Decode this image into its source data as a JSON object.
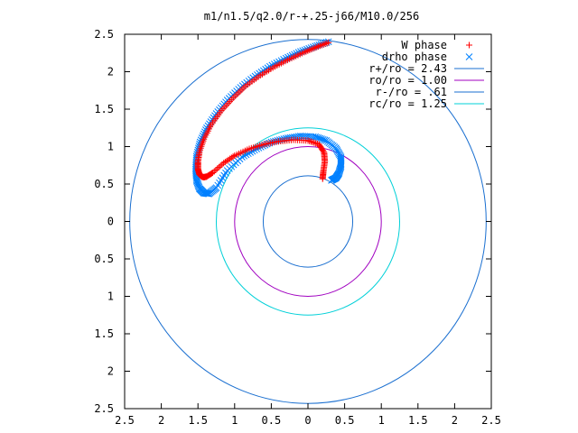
{
  "chart_data": {
    "type": "scatter",
    "title": "m1/n1.5/q2.0/r-+.25-j66/M10.0/256",
    "xlim": [
      -2.5,
      2.5
    ],
    "ylim": [
      -2.5,
      2.5
    ],
    "x_ticks": [
      -2.5,
      -2,
      -1.5,
      -1,
      -0.5,
      0,
      0.5,
      1,
      1.5,
      2,
      2.5
    ],
    "y_ticks": [
      -2.5,
      -2,
      -1.5,
      -1,
      -0.5,
      0,
      0.5,
      1,
      1.5,
      2,
      2.5
    ],
    "x_tick_labels": [
      "2.5",
      "2",
      "1.5",
      "1",
      "0.5",
      "0",
      "0.5",
      "1",
      "1.5",
      "2",
      "2.5"
    ],
    "y_tick_labels": [
      "2.5",
      "2",
      "1.5",
      "1",
      "0.5",
      "0",
      "0.5",
      "1",
      "1.5",
      "2",
      "2.5"
    ],
    "grid": false,
    "legend_position": "top-right",
    "legend": [
      {
        "label": "W phase",
        "marker": "plus",
        "color": "#ff0000"
      },
      {
        "label": "drho phase",
        "marker": "cross",
        "color": "#0080ff"
      },
      {
        "label": "r+/ro = 2.43",
        "line": true,
        "color": "#1a6fd0"
      },
      {
        "label": "ro/ro = 1.00",
        "line": true,
        "color": "#a000c0"
      },
      {
        "label": "r-/ro = .61",
        "line": true,
        "color": "#1a6fd0"
      },
      {
        "label": "rc/ro = 1.25",
        "line": true,
        "color": "#00d0d8"
      }
    ],
    "circles": [
      {
        "radius": 2.43,
        "color": "#1a6fd0"
      },
      {
        "radius": 1.0,
        "color": "#a000c0"
      },
      {
        "radius": 0.61,
        "color": "#1a6fd0"
      },
      {
        "radius": 1.25,
        "color": "#00d0d8"
      }
    ],
    "series": [
      {
        "name": "W phase",
        "marker": "plus",
        "color": "#ff0000",
        "x": [
          0.28,
          0.12,
          -0.05,
          -0.25,
          -0.45,
          -0.65,
          -0.85,
          -1.02,
          -1.18,
          -1.32,
          -1.42,
          -1.48,
          -1.5,
          -1.5,
          -1.48,
          -1.45,
          -1.42,
          -1.38,
          -1.3,
          -1.15,
          -1.0,
          -0.8,
          -0.6,
          -0.4,
          -0.2,
          0.0,
          0.15,
          0.22,
          0.23,
          0.21,
          0.2
        ],
        "y": [
          2.39,
          2.33,
          2.26,
          2.17,
          2.07,
          1.95,
          1.81,
          1.65,
          1.48,
          1.29,
          1.1,
          0.93,
          0.8,
          0.7,
          0.63,
          0.6,
          0.59,
          0.6,
          0.65,
          0.78,
          0.88,
          0.97,
          1.03,
          1.07,
          1.09,
          1.08,
          1.03,
          0.92,
          0.8,
          0.67,
          0.57
        ]
      },
      {
        "name": "drho phase",
        "marker": "cross",
        "color": "#0080ff",
        "x": [
          0.28,
          0.1,
          -0.1,
          -0.3,
          -0.52,
          -0.72,
          -0.92,
          -1.1,
          -1.25,
          -1.38,
          -1.47,
          -1.52,
          -1.53,
          -1.52,
          -1.48,
          -1.42,
          -1.35,
          -1.25,
          -1.1,
          -0.9,
          -0.7,
          -0.5,
          -0.3,
          -0.1,
          0.1,
          0.25,
          0.38,
          0.45,
          0.45,
          0.42,
          0.38,
          0.32
        ],
        "y": [
          2.4,
          2.34,
          2.27,
          2.18,
          2.07,
          1.94,
          1.79,
          1.62,
          1.44,
          1.25,
          1.06,
          0.87,
          0.7,
          0.55,
          0.44,
          0.38,
          0.37,
          0.45,
          0.68,
          0.86,
          0.97,
          1.06,
          1.11,
          1.14,
          1.13,
          1.08,
          0.98,
          0.86,
          0.74,
          0.64,
          0.58,
          0.55
        ]
      }
    ]
  }
}
